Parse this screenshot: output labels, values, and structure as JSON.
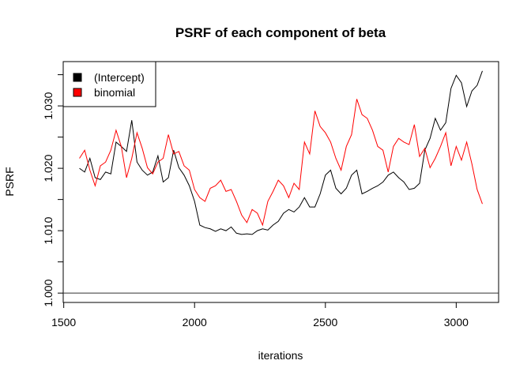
{
  "chart_data": {
    "type": "line",
    "title": "PSRF of each component of beta",
    "xlabel": "iterations",
    "ylabel": "PSRF",
    "x": [
      1560,
      1580,
      1600,
      1620,
      1640,
      1660,
      1680,
      1700,
      1720,
      1740,
      1760,
      1780,
      1800,
      1820,
      1840,
      1860,
      1880,
      1900,
      1920,
      1940,
      1960,
      1980,
      2000,
      2020,
      2040,
      2060,
      2080,
      2100,
      2120,
      2140,
      2160,
      2180,
      2200,
      2220,
      2240,
      2260,
      2280,
      2300,
      2320,
      2340,
      2360,
      2380,
      2400,
      2420,
      2440,
      2460,
      2480,
      2500,
      2520,
      2540,
      2560,
      2580,
      2600,
      2620,
      2640,
      2660,
      2680,
      2700,
      2720,
      2740,
      2760,
      2780,
      2800,
      2820,
      2840,
      2860,
      2880,
      2900,
      2920,
      2940,
      2960,
      2980,
      3000,
      3020,
      3040,
      3060,
      3080,
      3100
    ],
    "series": [
      {
        "name": "(Intercept)",
        "color": "#000000",
        "values": [
          1.02,
          1.0194,
          1.0216,
          1.0185,
          1.0182,
          1.0194,
          1.0191,
          1.0242,
          1.0235,
          1.0227,
          1.0277,
          1.021,
          1.0197,
          1.0189,
          1.0194,
          1.022,
          1.0178,
          1.0185,
          1.0229,
          1.0201,
          1.0189,
          1.0172,
          1.0147,
          1.0109,
          1.0105,
          1.0103,
          1.0099,
          1.0103,
          1.01,
          1.0106,
          1.0096,
          1.0094,
          1.0095,
          1.0094,
          1.01,
          1.0103,
          1.0101,
          1.0109,
          1.0115,
          1.0128,
          1.0134,
          1.013,
          1.0138,
          1.0153,
          1.0138,
          1.0138,
          1.0159,
          1.0189,
          1.0197,
          1.0168,
          1.0159,
          1.0168,
          1.0189,
          1.0197,
          1.0159,
          1.0163,
          1.0168,
          1.0172,
          1.0178,
          1.0189,
          1.0194,
          1.0185,
          1.0178,
          1.0166,
          1.0168,
          1.0176,
          1.0229,
          1.0248,
          1.028,
          1.0261,
          1.0273,
          1.0328,
          1.0349,
          1.0337,
          1.0299,
          1.0324,
          1.0333,
          1.0356
        ]
      },
      {
        "name": "binomial",
        "color": "#ff0000",
        "values": [
          1.0216,
          1.0229,
          1.0197,
          1.0172,
          1.0204,
          1.021,
          1.0229,
          1.0261,
          1.0235,
          1.0185,
          1.0216,
          1.0257,
          1.0232,
          1.0201,
          1.0191,
          1.021,
          1.0216,
          1.0254,
          1.0223,
          1.0227,
          1.0204,
          1.0197,
          1.0166,
          1.0153,
          1.0147,
          1.0168,
          1.0172,
          1.0181,
          1.0163,
          1.0166,
          1.0147,
          1.0125,
          1.0113,
          1.0134,
          1.0128,
          1.0109,
          1.0147,
          1.0163,
          1.0181,
          1.0172,
          1.0153,
          1.0176,
          1.0166,
          1.0242,
          1.0223,
          1.0292,
          1.0267,
          1.0257,
          1.0242,
          1.0216,
          1.0197,
          1.0235,
          1.0254,
          1.0311,
          1.0286,
          1.028,
          1.0261,
          1.0235,
          1.0229,
          1.0194,
          1.0235,
          1.0248,
          1.0242,
          1.0238,
          1.027,
          1.0219,
          1.0232,
          1.0201,
          1.0216,
          1.0235,
          1.0257,
          1.0204,
          1.0235,
          1.0213,
          1.0242,
          1.0207,
          1.0166,
          1.0143
        ]
      }
    ],
    "xlim": [
      1498,
      3162
    ],
    "xticks": [
      1500,
      2000,
      2500,
      3000
    ],
    "ylim": [
      0.9985,
      1.0371
    ],
    "yticks": [
      {
        "value": 1,
        "label": "1.000"
      },
      {
        "value": 1.005,
        "label": null
      },
      {
        "value": 1.01,
        "label": "1.010"
      },
      {
        "value": 1.015,
        "label": null
      },
      {
        "value": 1.02,
        "label": "1.020"
      },
      {
        "value": 1.025,
        "label": null
      },
      {
        "value": 1.03,
        "label": "1.030"
      },
      {
        "value": 1.035,
        "label": null
      }
    ],
    "hline": 1,
    "legend": "top-left"
  }
}
